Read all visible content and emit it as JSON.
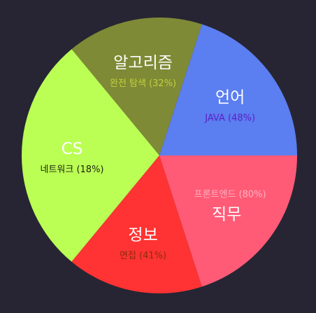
{
  "chart_data": {
    "type": "pie",
    "start_angle_deg": 0,
    "slices": [
      {
        "label": "언어",
        "sublabel": "JAVA (48%)",
        "value": 0.2,
        "color": "#5b7ef0",
        "sub_color": "#5c1ec8"
      },
      {
        "label": "알고리즘",
        "sublabel": "완전 탐색 (32%)",
        "value": 0.16,
        "color": "#7f8a36",
        "sub_color": "#bfd13c"
      },
      {
        "label": "CS",
        "sublabel": "네트워크 (18%)",
        "value": 0.28,
        "color": "#bbff55",
        "sub_color": "#1c2210"
      },
      {
        "label": "정보",
        "sublabel": "면접 (41%)",
        "value": 0.16,
        "color": "#ff3333",
        "sub_color": "#8c2b10"
      },
      {
        "label": "직무",
        "sublabel": "프론트엔드 (80%)",
        "value": 0.2,
        "color": "#ff5b77",
        "sub_color": "#ffb1c0"
      }
    ]
  }
}
